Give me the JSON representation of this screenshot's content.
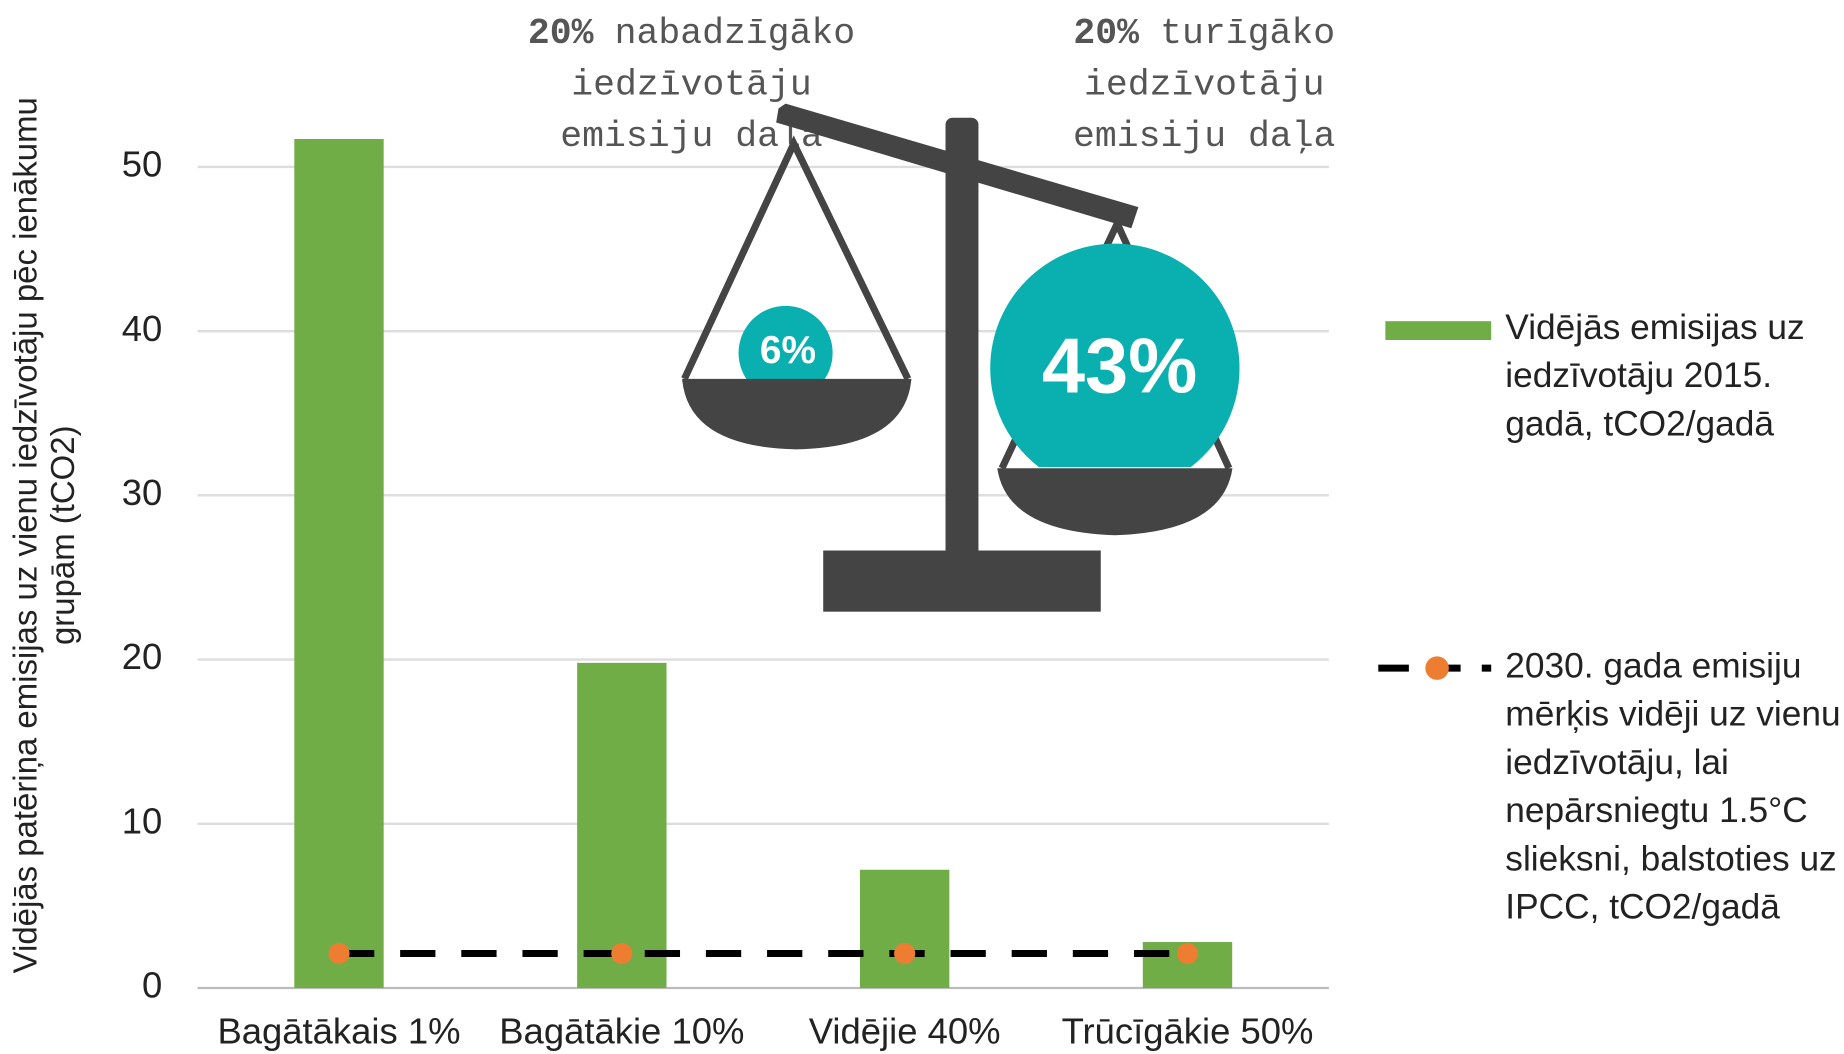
{
  "chart_data": {
    "type": "bar",
    "y_label": "Vidējās patēriņa emisijas uz vienu iedzīvotāju pēc ienākumu grupām (tCO2)",
    "categories": [
      "Bagātākais 1%",
      "Bagātākie 10%",
      "Vidējie 40%",
      "Trūcīgākie 50%"
    ],
    "series": [
      {
        "name": "Vidējās emisijas uz iedzīvotāju 2015. gadā, tCO2/gadā",
        "type": "bar",
        "color": "#70ad47",
        "values": [
          51.7,
          19.8,
          7.2,
          2.8
        ]
      },
      {
        "name": "2030. gada emisiju mērķis vidēji uz vienu iedzīvotāju, lai nepārsniegtu 1.5°C slieksni, balstoties uz IPCC, tCO2/gadā",
        "type": "line",
        "color": "#000000",
        "marker_color": "#ed7d31",
        "values": [
          2.1,
          2.1,
          2.1,
          2.1
        ]
      }
    ],
    "ylim": [
      0,
      55
    ],
    "yticks": [
      0,
      10,
      20,
      30,
      40,
      50
    ],
    "grid": true,
    "legend": "right",
    "annotations": [
      {
        "emphasis": "20%",
        "lines": [
          "nabadzīgāko",
          "iedzīvotāju",
          "emisiju daļa"
        ],
        "share": "6%"
      },
      {
        "emphasis": "20%",
        "lines": [
          "turīgāko",
          "iedzīvotāju",
          "emisiju daļa"
        ],
        "share": "43%"
      }
    ]
  }
}
